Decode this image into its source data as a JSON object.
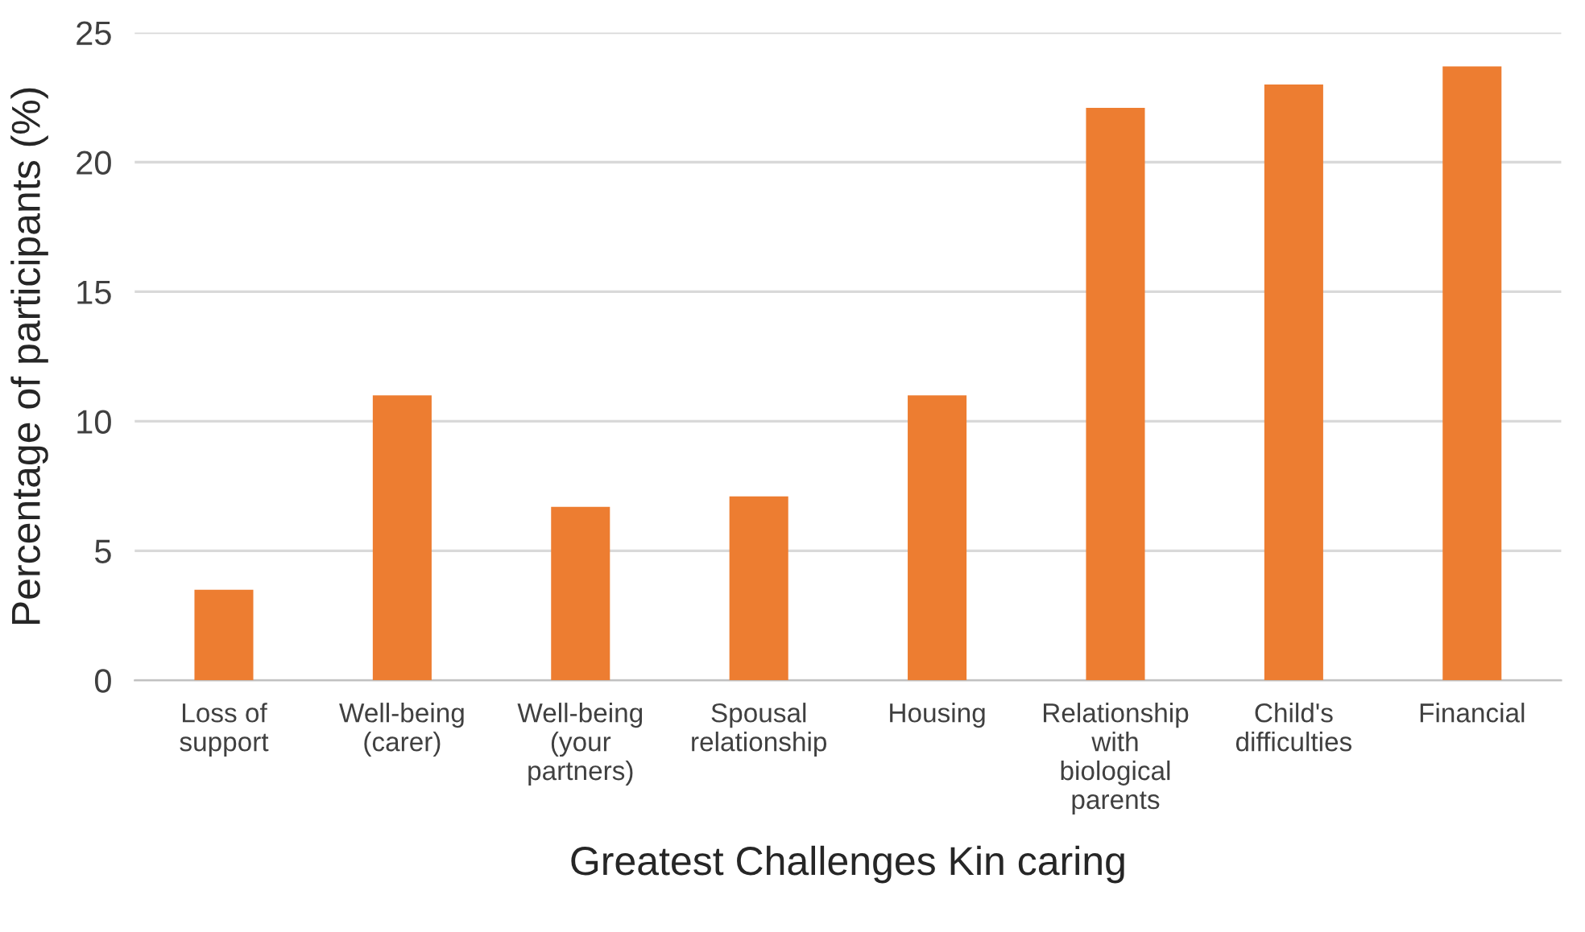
{
  "chart_data": {
    "type": "bar",
    "xlabel": "Greatest Challenges Kin caring",
    "ylabel": "Percentage of participants (%)",
    "categories": [
      "Loss of\nsupport",
      "Well-being\n(carer)",
      "Well-being\n(your\npartners)",
      "Spousal\nrelationship",
      "Housing",
      "Relationship\nwith\nbiological\nparents",
      "Child's\ndifficulties",
      "Financial"
    ],
    "values": [
      3.5,
      11.0,
      6.7,
      7.1,
      11.0,
      22.1,
      23.0,
      23.7
    ],
    "color": "#ed7d31",
    "ylim": [
      0,
      25
    ],
    "yticks": [
      0,
      5,
      10,
      15,
      20,
      25
    ],
    "grid": "y"
  }
}
